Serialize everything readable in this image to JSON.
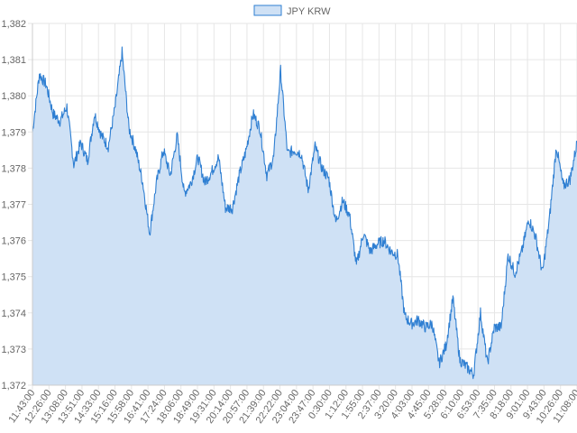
{
  "chart_data": {
    "type": "area",
    "legend": {
      "position": "top-center",
      "entries": [
        "JPY KRW"
      ]
    },
    "series": [
      {
        "name": "JPY KRW",
        "color": "#2f7fd2",
        "fill": "#cfe1f5",
        "values": [
          1379.0,
          1380.6,
          1380.3,
          1379.5,
          1379.3,
          1379.7,
          1378.1,
          1378.7,
          1378.2,
          1379.5,
          1378.9,
          1378.6,
          1379.7,
          1381.2,
          1379.1,
          1378.5,
          1377.6,
          1376.2,
          1377.6,
          1378.5,
          1377.8,
          1378.9,
          1377.3,
          1377.6,
          1378.3,
          1377.6,
          1377.9,
          1378.3,
          1376.9,
          1376.9,
          1377.8,
          1378.5,
          1379.5,
          1379.1,
          1377.8,
          1378.3,
          1380.7,
          1378.4,
          1378.5,
          1378.4,
          1377.4,
          1378.6,
          1378.0,
          1377.7,
          1376.5,
          1377.1,
          1376.7,
          1375.3,
          1376.2,
          1375.7,
          1375.9,
          1376.0,
          1375.7,
          1375.6,
          1373.9,
          1373.7,
          1373.8,
          1373.6,
          1373.7,
          1372.6,
          1373.1,
          1374.4,
          1372.7,
          1372.5,
          1372.3,
          1374.0,
          1372.6,
          1373.6,
          1373.6,
          1375.6,
          1375.1,
          1375.7,
          1376.6,
          1376.1,
          1375.1,
          1376.6,
          1378.6,
          1377.5,
          1377.7,
          1378.7
        ]
      }
    ],
    "x_tick_labels": [
      "11:43:00",
      "12:26:00",
      "13:08:00",
      "13:51:00",
      "14:33:00",
      "15:16:00",
      "15:58:00",
      "16:41:00",
      "17:24:00",
      "18:06:00",
      "18:49:00",
      "19:31:00",
      "20:14:00",
      "20:57:00",
      "21:39:00",
      "22:22:00",
      "23:04:00",
      "23:47:00",
      "0:30:00",
      "1:12:00",
      "1:55:00",
      "2:37:00",
      "3:20:00",
      "4:03:00",
      "4:45:00",
      "5:28:00",
      "6:10:00",
      "6:53:00",
      "7:35:00",
      "8:18:00",
      "9:01:00",
      "9:43:00",
      "10:26:00",
      "11:08:00"
    ],
    "y_ticks": [
      1372,
      1373,
      1374,
      1375,
      1376,
      1377,
      1378,
      1379,
      1380,
      1381,
      1382
    ],
    "y_tick_labels": [
      "1,372",
      "1,373",
      "1,374",
      "1,375",
      "1,376",
      "1,377",
      "1,378",
      "1,379",
      "1,380",
      "1,381",
      "1,382"
    ],
    "ylim": [
      1372,
      1382
    ],
    "grid": true
  }
}
